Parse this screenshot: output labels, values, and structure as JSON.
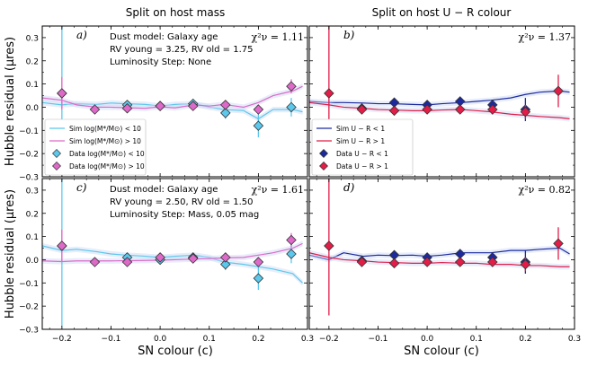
{
  "figure": {
    "col_titles": [
      "Split on host mass",
      "Split on host U − R colour"
    ],
    "ylabel": "Hubble residual (μres)",
    "xlabel": "SN colour (c)",
    "xlim": [
      -0.24,
      0.3
    ],
    "ylim": [
      -0.3,
      0.35
    ],
    "yticks": [
      "0.3",
      "0.2",
      "0.1",
      "0.0",
      "−0.1",
      "−0.2",
      "−0.3"
    ],
    "ytick_values": [
      0.3,
      0.2,
      0.1,
      0.0,
      -0.1,
      -0.2,
      -0.3
    ],
    "xticks": [
      "−0.2",
      "−0.1",
      "0.0",
      "0.1",
      "0.2",
      "0.3"
    ],
    "xtick_values": [
      -0.2,
      -0.1,
      0.0,
      0.1,
      0.2,
      0.3
    ],
    "colors": {
      "mass_low": "#5bc8ec",
      "mass_high": "#dd6ac8",
      "ur_low": "#1c2a9e",
      "ur_high": "#e11d48",
      "band": "#c9d7f4"
    }
  },
  "chart_data": [
    {
      "type": "scatter",
      "panel": "a)",
      "chi2": "χ²ν = 1.11",
      "annotations": [
        "Dust model: Galaxy age",
        "RV young = 3.25, RV old = 1.75",
        "Luminosity Step: None"
      ],
      "legend": [
        "Sim log(M*/M⊙) < 10",
        "Sim log(M*/M⊙) > 10",
        "Data log(M*/M⊙) < 10",
        "Data log(M*/M⊙) > 10"
      ],
      "series": [
        {
          "name": "Sim log(M*/M⊙) < 10",
          "kind": "line",
          "color_key": "mass_low",
          "x": [
            -0.24,
            -0.2,
            -0.17,
            -0.13,
            -0.1,
            -0.07,
            -0.03,
            0.0,
            0.03,
            0.07,
            0.1,
            0.13,
            0.17,
            0.2,
            0.23,
            0.27,
            0.29
          ],
          "y": [
            0.02,
            0.01,
            0.015,
            0.012,
            0.018,
            0.015,
            0.012,
            0.005,
            0.012,
            0.015,
            0.0,
            -0.01,
            -0.015,
            -0.05,
            -0.01,
            -0.01,
            -0.02
          ]
        },
        {
          "name": "Sim log(M*/M⊙) > 10",
          "kind": "line",
          "color_key": "mass_high",
          "x": [
            -0.24,
            -0.2,
            -0.17,
            -0.13,
            -0.1,
            -0.07,
            -0.03,
            0.0,
            0.03,
            0.07,
            0.1,
            0.13,
            0.17,
            0.2,
            0.23,
            0.27,
            0.29
          ],
          "y": [
            0.04,
            0.03,
            0.01,
            0.0,
            0.0,
            -0.002,
            -0.005,
            0.002,
            -0.003,
            0.01,
            0.005,
            0.012,
            0.0,
            0.02,
            0.05,
            0.07,
            0.09
          ]
        },
        {
          "name": "Data log(M*/M⊙) < 10",
          "kind": "points",
          "color_key": "mass_low",
          "x": [
            -0.2,
            -0.067,
            0.0,
            0.067,
            0.133,
            0.2,
            0.267
          ],
          "y": [
            0.06,
            0.01,
            0.005,
            0.015,
            -0.025,
            -0.08,
            0.0
          ],
          "err": [
            0.35,
            0.015,
            0.015,
            0.02,
            0.025,
            0.05,
            0.04
          ]
        },
        {
          "name": "Data log(M*/M⊙) > 10",
          "kind": "points",
          "color_key": "mass_high",
          "x": [
            -0.2,
            -0.133,
            -0.067,
            0.0,
            0.067,
            0.133,
            0.2,
            0.267
          ],
          "y": [
            0.06,
            -0.01,
            -0.005,
            0.005,
            0.005,
            0.01,
            -0.01,
            0.09
          ],
          "err": [
            0.07,
            0.015,
            0.015,
            0.015,
            0.015,
            0.015,
            0.02,
            0.03
          ]
        }
      ]
    },
    {
      "type": "scatter",
      "panel": "b)",
      "chi2": "χ²ν = 1.37",
      "annotations": [],
      "legend": [
        "Sim U − R < 1",
        "Sim U − R > 1",
        "Data U − R < 1",
        "Data U − R > 1"
      ],
      "series": [
        {
          "name": "Sim U − R < 1",
          "kind": "line",
          "color_key": "ur_low",
          "x": [
            -0.24,
            -0.2,
            -0.17,
            -0.13,
            -0.1,
            -0.07,
            -0.03,
            0.0,
            0.03,
            0.07,
            0.1,
            0.13,
            0.17,
            0.2,
            0.23,
            0.27,
            0.29
          ],
          "y": [
            0.025,
            0.02,
            0.02,
            0.018,
            0.015,
            0.015,
            0.012,
            0.01,
            0.015,
            0.02,
            0.025,
            0.03,
            0.04,
            0.055,
            0.065,
            0.07,
            0.065
          ]
        },
        {
          "name": "Sim U − R > 1",
          "kind": "line",
          "color_key": "ur_high",
          "x": [
            -0.24,
            -0.2,
            -0.17,
            -0.13,
            -0.1,
            -0.07,
            -0.03,
            0.0,
            0.03,
            0.07,
            0.1,
            0.13,
            0.17,
            0.2,
            0.23,
            0.27,
            0.29
          ],
          "y": [
            0.02,
            0.01,
            0.0,
            -0.005,
            -0.01,
            -0.012,
            -0.015,
            -0.015,
            -0.012,
            -0.01,
            -0.015,
            -0.02,
            -0.03,
            -0.035,
            -0.04,
            -0.045,
            -0.05
          ]
        },
        {
          "name": "Data U − R < 1",
          "kind": "points",
          "color_key": "ur_low",
          "x": [
            -0.133,
            -0.067,
            0.0,
            0.067,
            0.133,
            0.2
          ],
          "y": [
            -0.005,
            0.02,
            0.01,
            0.025,
            0.01,
            -0.01
          ],
          "err": [
            0.02,
            0.015,
            0.015,
            0.02,
            0.02,
            0.05
          ]
        },
        {
          "name": "Data U − R > 1",
          "kind": "points",
          "color_key": "ur_high",
          "x": [
            -0.2,
            -0.133,
            -0.067,
            0.0,
            0.067,
            0.133,
            0.2,
            0.267
          ],
          "y": [
            0.06,
            -0.01,
            -0.015,
            -0.01,
            -0.01,
            -0.01,
            -0.02,
            0.07
          ],
          "err": [
            0.3,
            0.02,
            0.015,
            0.015,
            0.015,
            0.02,
            0.03,
            0.07
          ]
        }
      ]
    },
    {
      "type": "scatter",
      "panel": "c)",
      "chi2": "χ²ν = 1.61",
      "annotations": [
        "Dust model: Galaxy age",
        "RV young = 2.50, RV old = 1.50",
        "Luminosity Step: Mass, 0.05 mag"
      ],
      "legend": [],
      "series": [
        {
          "name": "Sim log(M*/M⊙) < 10",
          "kind": "line",
          "color_key": "mass_low",
          "x": [
            -0.24,
            -0.2,
            -0.17,
            -0.13,
            -0.1,
            -0.07,
            -0.03,
            0.0,
            0.03,
            0.07,
            0.1,
            0.13,
            0.17,
            0.2,
            0.23,
            0.27,
            0.29
          ],
          "y": [
            0.06,
            0.04,
            0.045,
            0.035,
            0.025,
            0.02,
            0.015,
            0.01,
            0.015,
            0.02,
            0.01,
            -0.01,
            -0.02,
            -0.03,
            -0.04,
            -0.06,
            -0.1
          ]
        },
        {
          "name": "Sim log(M*/M⊙) > 10",
          "kind": "line",
          "color_key": "mass_high",
          "x": [
            -0.24,
            -0.2,
            -0.17,
            -0.13,
            -0.1,
            -0.07,
            -0.03,
            0.0,
            0.03,
            0.07,
            0.1,
            0.13,
            0.17,
            0.2,
            0.23,
            0.27,
            0.29
          ],
          "y": [
            -0.005,
            -0.008,
            -0.005,
            -0.005,
            -0.005,
            -0.004,
            -0.003,
            -0.002,
            0.0,
            0.003,
            0.005,
            0.008,
            0.01,
            0.02,
            0.03,
            0.05,
            0.07
          ]
        },
        {
          "name": "Data log(M*/M⊙) < 10",
          "kind": "points",
          "color_key": "mass_low",
          "x": [
            -0.2,
            -0.067,
            0.0,
            0.067,
            0.133,
            0.2,
            0.267
          ],
          "y": [
            0.06,
            0.01,
            0.0,
            0.01,
            -0.02,
            -0.08,
            0.025
          ],
          "err": [
            0.35,
            0.015,
            0.015,
            0.02,
            0.025,
            0.05,
            0.04
          ]
        },
        {
          "name": "Data log(M*/M⊙) > 10",
          "kind": "points",
          "color_key": "mass_high",
          "x": [
            -0.2,
            -0.133,
            -0.067,
            0.0,
            0.067,
            0.133,
            0.2,
            0.267
          ],
          "y": [
            0.06,
            -0.01,
            -0.01,
            0.01,
            0.005,
            0.01,
            -0.01,
            0.085
          ],
          "err": [
            0.07,
            0.015,
            0.015,
            0.015,
            0.015,
            0.015,
            0.02,
            0.03
          ]
        }
      ]
    },
    {
      "type": "scatter",
      "panel": "d)",
      "chi2": "χ²ν = 0.82",
      "annotations": [],
      "legend": [],
      "series": [
        {
          "name": "Sim U − R < 1",
          "kind": "line",
          "color_key": "ur_low",
          "x": [
            -0.24,
            -0.2,
            -0.17,
            -0.13,
            -0.1,
            -0.07,
            -0.03,
            0.0,
            0.03,
            0.07,
            0.1,
            0.13,
            0.17,
            0.2,
            0.23,
            0.27,
            0.29
          ],
          "y": [
            0.02,
            0.0,
            0.03,
            0.015,
            0.02,
            0.018,
            0.02,
            0.015,
            0.02,
            0.03,
            0.03,
            0.03,
            0.04,
            0.04,
            0.045,
            0.05,
            0.025
          ]
        },
        {
          "name": "Sim U − R > 1",
          "kind": "line",
          "color_key": "ur_high",
          "x": [
            -0.24,
            -0.2,
            -0.17,
            -0.13,
            -0.1,
            -0.07,
            -0.03,
            0.0,
            0.03,
            0.07,
            0.1,
            0.13,
            0.17,
            0.2,
            0.23,
            0.27,
            0.29
          ],
          "y": [
            0.03,
            0.01,
            0.0,
            -0.005,
            -0.01,
            -0.012,
            -0.015,
            -0.015,
            -0.012,
            -0.015,
            -0.015,
            -0.02,
            -0.02,
            -0.025,
            -0.025,
            -0.03,
            -0.03
          ]
        },
        {
          "name": "Data U − R < 1",
          "kind": "points",
          "color_key": "ur_low",
          "x": [
            -0.133,
            -0.067,
            0.0,
            0.067,
            0.133,
            0.2
          ],
          "y": [
            -0.005,
            0.02,
            0.01,
            0.025,
            0.01,
            -0.01
          ],
          "err": [
            0.02,
            0.015,
            0.015,
            0.02,
            0.02,
            0.05
          ]
        },
        {
          "name": "Data U − R > 1",
          "kind": "points",
          "color_key": "ur_high",
          "x": [
            -0.2,
            -0.133,
            -0.067,
            0.0,
            0.067,
            0.133,
            0.2,
            0.267
          ],
          "y": [
            0.06,
            -0.01,
            -0.015,
            -0.01,
            -0.01,
            -0.01,
            -0.02,
            0.07
          ],
          "err": [
            0.3,
            0.02,
            0.015,
            0.015,
            0.015,
            0.02,
            0.03,
            0.07
          ]
        }
      ]
    }
  ]
}
